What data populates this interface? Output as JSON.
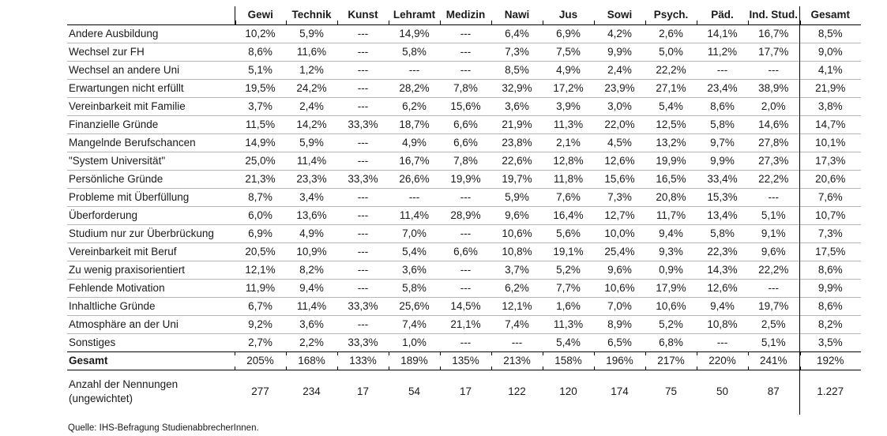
{
  "table": {
    "columns": [
      "Gewi",
      "Technik",
      "Kunst",
      "Lehramt",
      "Medizin",
      "Nawi",
      "Jus",
      "Sowi",
      "Psych.",
      "Päd.",
      "Ind. Stud.",
      "Gesamt"
    ],
    "rows": [
      {
        "type": "data",
        "label": "Andere Ausbildung",
        "values": [
          "10,2%",
          "5,9%",
          "---",
          "14,9%",
          "---",
          "6,4%",
          "6,9%",
          "4,2%",
          "2,6%",
          "14,1%",
          "16,7%",
          "8,5%"
        ]
      },
      {
        "type": "data",
        "label": "Wechsel zur FH",
        "values": [
          "8,6%",
          "11,6%",
          "---",
          "5,8%",
          "---",
          "7,3%",
          "7,5%",
          "9,9%",
          "5,0%",
          "11,2%",
          "17,7%",
          "9,0%"
        ]
      },
      {
        "type": "data",
        "label": "Wechsel an andere Uni",
        "values": [
          "5,1%",
          "1,2%",
          "---",
          "---",
          "---",
          "8,5%",
          "4,9%",
          "2,4%",
          "22,2%",
          "---",
          "---",
          "4,1%"
        ]
      },
      {
        "type": "data",
        "label": "Erwartungen nicht erfüllt",
        "values": [
          "19,5%",
          "24,2%",
          "---",
          "28,2%",
          "7,8%",
          "32,9%",
          "17,2%",
          "23,9%",
          "27,1%",
          "23,4%",
          "38,9%",
          "21,9%"
        ]
      },
      {
        "type": "data",
        "label": "Vereinbarkeit mit Familie",
        "values": [
          "3,7%",
          "2,4%",
          "---",
          "6,2%",
          "15,6%",
          "3,6%",
          "3,9%",
          "3,0%",
          "5,4%",
          "8,6%",
          "2,0%",
          "3,8%"
        ]
      },
      {
        "type": "data",
        "label": "Finanzielle Gründe",
        "values": [
          "11,5%",
          "14,2%",
          "33,3%",
          "18,7%",
          "6,6%",
          "21,9%",
          "11,3%",
          "22,0%",
          "12,5%",
          "5,8%",
          "14,6%",
          "14,7%"
        ]
      },
      {
        "type": "data",
        "label": "Mangelnde Berufschancen",
        "values": [
          "14,9%",
          "5,9%",
          "---",
          "4,9%",
          "6,6%",
          "23,8%",
          "2,1%",
          "4,5%",
          "13,2%",
          "9,7%",
          "27,8%",
          "10,1%"
        ]
      },
      {
        "type": "data",
        "label": "\"System Universität\"",
        "values": [
          "25,0%",
          "11,4%",
          "---",
          "16,7%",
          "7,8%",
          "22,6%",
          "12,8%",
          "12,6%",
          "19,9%",
          "9,9%",
          "27,3%",
          "17,3%"
        ]
      },
      {
        "type": "data",
        "label": "Persönliche Gründe",
        "values": [
          "21,3%",
          "23,3%",
          "33,3%",
          "26,6%",
          "19,9%",
          "19,7%",
          "11,8%",
          "15,6%",
          "16,5%",
          "33,4%",
          "22,2%",
          "20,6%"
        ]
      },
      {
        "type": "data",
        "label": "Probleme mit Überfüllung",
        "values": [
          "8,7%",
          "3,4%",
          "---",
          "---",
          "---",
          "5,9%",
          "7,6%",
          "7,3%",
          "20,8%",
          "15,3%",
          "---",
          "7,6%"
        ]
      },
      {
        "type": "data",
        "label": "Überforderung",
        "values": [
          "6,0%",
          "13,6%",
          "---",
          "11,4%",
          "28,9%",
          "9,6%",
          "16,4%",
          "12,7%",
          "11,7%",
          "13,4%",
          "5,1%",
          "10,7%"
        ]
      },
      {
        "type": "data",
        "label": "Studium nur zur Überbrückung",
        "values": [
          "6,9%",
          "4,9%",
          "---",
          "7,0%",
          "---",
          "10,6%",
          "5,6%",
          "10,0%",
          "9,4%",
          "5,8%",
          "9,1%",
          "7,3%"
        ]
      },
      {
        "type": "data",
        "label": "Vereinbarkeit mit Beruf",
        "values": [
          "20,5%",
          "10,9%",
          "---",
          "5,4%",
          "6,6%",
          "10,8%",
          "19,1%",
          "25,4%",
          "9,3%",
          "22,3%",
          "9,6%",
          "17,5%"
        ]
      },
      {
        "type": "data",
        "label": "Zu wenig praxisorientiert",
        "values": [
          "12,1%",
          "8,2%",
          "---",
          "3,6%",
          "---",
          "3,7%",
          "5,2%",
          "9,6%",
          "0,9%",
          "14,3%",
          "22,2%",
          "8,6%"
        ]
      },
      {
        "type": "data",
        "label": "Fehlende Motivation",
        "values": [
          "11,9%",
          "9,4%",
          "---",
          "5,8%",
          "---",
          "6,2%",
          "7,7%",
          "10,6%",
          "17,9%",
          "12,6%",
          "---",
          "9,9%"
        ]
      },
      {
        "type": "data",
        "label": "Inhaltliche Gründe",
        "values": [
          "6,7%",
          "11,4%",
          "33,3%",
          "25,6%",
          "14,5%",
          "12,1%",
          "1,6%",
          "7,0%",
          "10,6%",
          "9,4%",
          "19,7%",
          "8,6%"
        ]
      },
      {
        "type": "data",
        "label": "Atmosphäre an der Uni",
        "values": [
          "9,2%",
          "3,6%",
          "---",
          "7,4%",
          "21,1%",
          "7,4%",
          "11,3%",
          "8,9%",
          "5,2%",
          "10,8%",
          "2,5%",
          "8,2%"
        ]
      },
      {
        "type": "data",
        "label": "Sonstiges",
        "values": [
          "2,7%",
          "2,2%",
          "33,3%",
          "1,0%",
          "---",
          "---",
          "5,4%",
          "6,5%",
          "6,8%",
          "---",
          "5,1%",
          "3,5%"
        ]
      },
      {
        "type": "total",
        "label": "Gesamt",
        "values": [
          "205%",
          "168%",
          "133%",
          "189%",
          "135%",
          "213%",
          "158%",
          "196%",
          "217%",
          "220%",
          "241%",
          "192%"
        ]
      },
      {
        "type": "count",
        "label": "Anzahl der Nennungen (ungewichtet)",
        "values": [
          "277",
          "234",
          "17",
          "54",
          "17",
          "122",
          "120",
          "174",
          "75",
          "50",
          "87",
          "1.227"
        ]
      }
    ],
    "footer": "Quelle: IHS-Befragung StudienabbrecherInnen."
  }
}
